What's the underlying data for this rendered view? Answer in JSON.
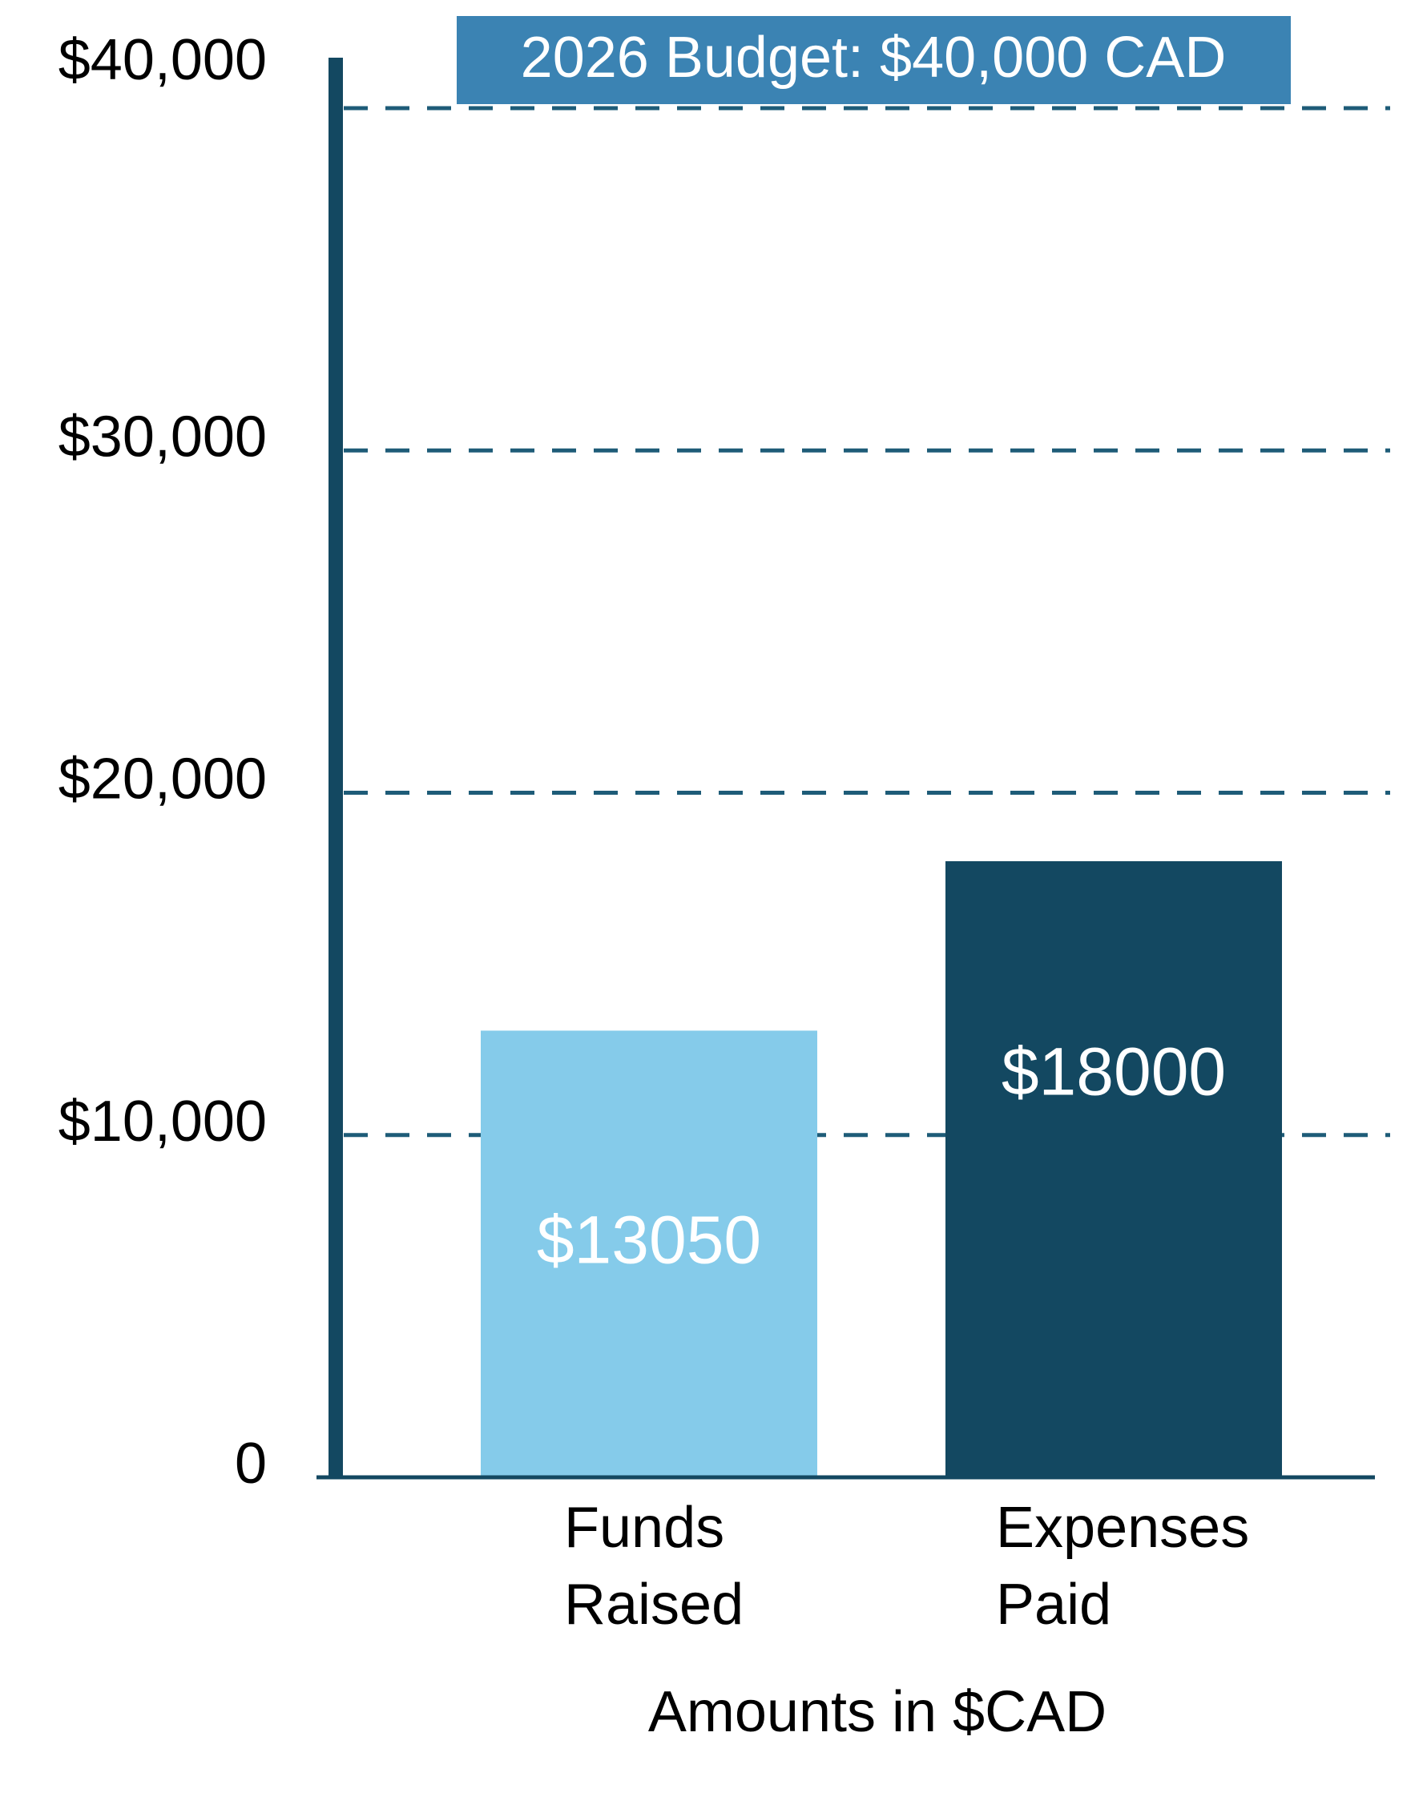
{
  "chart_data": {
    "type": "bar",
    "title": "2026 Budget: $40,000 CAD",
    "xlabel": "Amounts in $CAD",
    "ylabel": "",
    "ylim": [
      0,
      40000
    ],
    "yticks": [
      {
        "value": 0,
        "label": "0"
      },
      {
        "value": 10000,
        "label": "$10,000"
      },
      {
        "value": 20000,
        "label": "$20,000"
      },
      {
        "value": 30000,
        "label": "$30,000"
      },
      {
        "value": 40000,
        "label": "$40,000"
      }
    ],
    "gridlines": [
      10000,
      20000,
      30000,
      40000
    ],
    "grid_style": "dashed",
    "categories": [
      [
        "Funds",
        "Raised"
      ],
      [
        "Expenses",
        "Paid"
      ]
    ],
    "values": [
      13050,
      18000
    ],
    "data_labels": [
      "$13050",
      "$18000"
    ]
  },
  "colors": {
    "bar_funds": "#85CBEA",
    "bar_expenses": "#134861",
    "grid": "#1E5C78",
    "axis": "#134861",
    "title_box": "#3B83B3",
    "title_text": "#ffffff",
    "bar_label_funds": "#ffffff",
    "bar_label_expenses": "#ffffff",
    "text": "#000000"
  }
}
